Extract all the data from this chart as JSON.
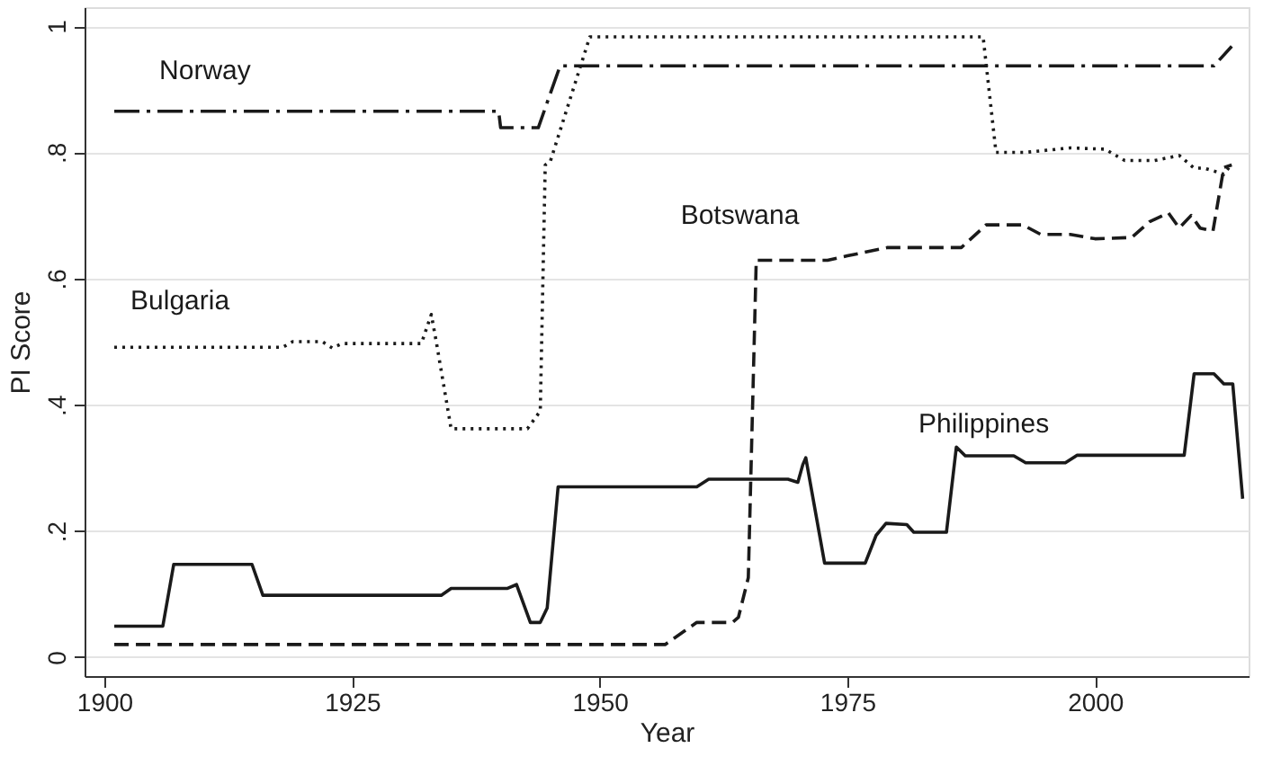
{
  "chart_data": {
    "type": "line",
    "xlabel": "Year",
    "ylabel": "PI Score",
    "xlim": [
      1898,
      2015.5
    ],
    "ylim": [
      -0.03,
      1.03
    ],
    "xticks": [
      1900,
      1925,
      1950,
      1975,
      2000
    ],
    "yticks": [
      0,
      {
        "value": 0.2,
        "label": ".2"
      },
      {
        "value": 0.4,
        "label": ".4"
      },
      {
        "value": 0.6,
        "label": ".6"
      },
      {
        "value": 0.8,
        "label": ".8"
      },
      1
    ],
    "grid": "y",
    "marker": "none",
    "series": [
      {
        "name": "Norway",
        "color": "#1a1a1a",
        "line_style": "dashdot",
        "x": [
          1901,
          1939.8,
          1940,
          1943.8,
          1946,
          2012,
          2013.8
        ],
        "values": [
          0.865,
          0.865,
          0.839,
          0.839,
          0.937,
          0.937,
          0.968
        ]
      },
      {
        "name": "Bulgaria",
        "color": "#1a1a1a",
        "line_style": "dotted",
        "x": [
          1901,
          1918,
          1919,
          1922,
          1923,
          1924,
          1932,
          1933,
          1933.5,
          1935,
          1942.7,
          1944,
          1944.5,
          1945,
          1949,
          1988.7,
          1990,
          1993,
          1997.5,
          2001,
          2003,
          2006,
          2008.5,
          2010,
          2011,
          2012.5,
          2013,
          2013.7
        ],
        "values": [
          0.491,
          0.491,
          0.5,
          0.5,
          0.49,
          0.497,
          0.497,
          0.543,
          0.5,
          0.362,
          0.362,
          0.39,
          0.78,
          0.785,
          0.983,
          0.983,
          0.8,
          0.8,
          0.807,
          0.805,
          0.787,
          0.787,
          0.795,
          0.775,
          0.775,
          0.768,
          0.765,
          0.78
        ]
      },
      {
        "name": "Botswana",
        "color": "#1a1a1a",
        "line_style": "dashed",
        "x": [
          1901,
          1956.6,
          1959.8,
          1963.4,
          1964,
          1965,
          1965.8,
          1973,
          1975,
          1979,
          1986.5,
          1989,
          1992.7,
          1994.5,
          1997.5,
          2000,
          2003.7,
          2005.5,
          2007.4,
          2008.5,
          2009.7,
          2010.6,
          2011.9,
          2012.5,
          2013,
          2013.8
        ],
        "values": [
          0.02,
          0.02,
          0.055,
          0.055,
          0.063,
          0.126,
          0.629,
          0.629,
          0.636,
          0.649,
          0.649,
          0.685,
          0.685,
          0.67,
          0.67,
          0.663,
          0.665,
          0.69,
          0.704,
          0.68,
          0.7,
          0.68,
          0.675,
          0.73,
          0.776,
          0.78
        ]
      },
      {
        "name": "Philippines",
        "color": "#1a1a1a",
        "line_style": "solid",
        "x": [
          1901,
          1905.9,
          1907,
          1914.9,
          1916,
          1934,
          1935,
          1940.7,
          1941.6,
          1943,
          1944,
          1944.7,
          1945.8,
          1959.8,
          1961,
          1969,
          1970,
          1970.5,
          1970.8,
          1972.7,
          1976.8,
          1977.9,
          1978.9,
          1981,
          1981.7,
          1985,
          1986,
          1986.9,
          1991.8,
          1993,
          1997,
          1998.2,
          2009,
          2010,
          2012,
          2013,
          2013.9,
          2014.9
        ],
        "values": [
          0.049,
          0.049,
          0.147,
          0.147,
          0.098,
          0.098,
          0.109,
          0.109,
          0.115,
          0.055,
          0.055,
          0.078,
          0.27,
          0.27,
          0.282,
          0.282,
          0.277,
          0.305,
          0.316,
          0.149,
          0.149,
          0.193,
          0.212,
          0.21,
          0.198,
          0.198,
          0.333,
          0.319,
          0.319,
          0.308,
          0.308,
          0.32,
          0.32,
          0.449,
          0.449,
          0.433,
          0.433,
          0.251
        ]
      }
    ]
  }
}
